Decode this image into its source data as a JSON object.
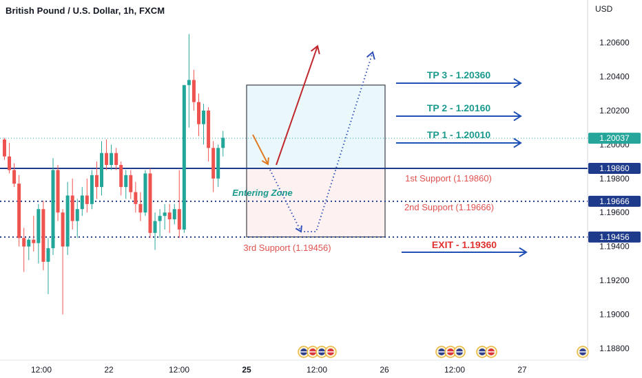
{
  "header": {
    "title": "British Pound / U.S. Dollar, 1h, FXCM",
    "price_unit": "USD"
  },
  "colors": {
    "bull": "#22a69a",
    "bear": "#ef5350",
    "support_line": "#1e3a8a",
    "target_arrow": "#1e4fb4",
    "tp_text": "#1a9a8c",
    "support_text": "#e0514f",
    "exit_text": "#e0302f",
    "zone_top_fill": "#eaf7fb",
    "zone_bottom_fill": "#fdf1f1",
    "up_arrow": "#c0282d",
    "entry_arrow": "#e07a22",
    "dotted_path": "#2f4fb8",
    "current_price_tag": "#26a69a",
    "level_tag": "#1e3a8a"
  },
  "chart_data": {
    "type": "candlestick",
    "symbol": "British Pound / U.S. Dollar",
    "timeframe": "1h",
    "source": "FXCM",
    "y_unit": "USD",
    "ylim": [
      1.1875,
      1.2075
    ],
    "y_ticks": [
      1.188,
      1.19,
      1.192,
      1.194,
      1.196,
      1.198,
      1.2,
      1.202,
      1.204,
      1.206
    ],
    "y_tick_labels": [
      "1.18800",
      "1.19000",
      "1.19200",
      "1.19400",
      "1.19600",
      "1.19800",
      "1.20000",
      "1.20200",
      "1.20400",
      "1.20600"
    ],
    "x_ticks": [
      "12:00",
      "22",
      "12:00",
      "25",
      "12:00",
      "26",
      "12:00",
      "27"
    ],
    "current_price": "1.20037",
    "levels": [
      {
        "label": "1.19860",
        "value": 1.1986,
        "style": "solid"
      },
      {
        "label": "1.19666",
        "value": 1.19666,
        "style": "dotted"
      },
      {
        "label": "1.19456",
        "value": 1.19456,
        "style": "dotted"
      }
    ],
    "zone": {
      "top": 1.2035,
      "mid": 1.1986,
      "bottom": 1.19456,
      "label": "Entering Zone"
    },
    "targets": [
      {
        "label": "TP 3 - 1.20360",
        "value": 1.2036
      },
      {
        "label": "TP 2 - 1.20160",
        "value": 1.2016
      },
      {
        "label": "TP 1 - 1.20010",
        "value": 1.2001
      }
    ],
    "supports": [
      {
        "label": "1st Support (1.19860)",
        "value": 1.1986
      },
      {
        "label": "2nd Support (1.19666)",
        "value": 1.19666
      },
      {
        "label": "3rd Support (1.19456)",
        "value": 1.19456
      }
    ],
    "exit": {
      "label": "EXIT - 1.19360",
      "value": 1.1936
    },
    "candles": [
      {
        "o": 1.2003,
        "h": 1.2004,
        "l": 1.1991,
        "c": 1.1993
      },
      {
        "o": 1.1993,
        "h": 1.2001,
        "l": 1.1983,
        "c": 1.1985
      },
      {
        "o": 1.1985,
        "h": 1.1989,
        "l": 1.1975,
        "c": 1.1977
      },
      {
        "o": 1.1977,
        "h": 1.1982,
        "l": 1.194,
        "c": 1.1945
      },
      {
        "o": 1.1945,
        "h": 1.1951,
        "l": 1.1925,
        "c": 1.194
      },
      {
        "o": 1.194,
        "h": 1.1945,
        "l": 1.1932,
        "c": 1.1944
      },
      {
        "o": 1.1944,
        "h": 1.1958,
        "l": 1.1937,
        "c": 1.1942
      },
      {
        "o": 1.1942,
        "h": 1.1965,
        "l": 1.193,
        "c": 1.1962
      },
      {
        "o": 1.1962,
        "h": 1.1967,
        "l": 1.1926,
        "c": 1.1931
      },
      {
        "o": 1.1931,
        "h": 1.1945,
        "l": 1.1912,
        "c": 1.1939
      },
      {
        "o": 1.1939,
        "h": 1.1992,
        "l": 1.1935,
        "c": 1.1985
      },
      {
        "o": 1.1985,
        "h": 1.1988,
        "l": 1.1955,
        "c": 1.196
      },
      {
        "o": 1.196,
        "h": 1.1962,
        "l": 1.19,
        "c": 1.194
      },
      {
        "o": 1.194,
        "h": 1.1978,
        "l": 1.1935,
        "c": 1.197
      },
      {
        "o": 1.197,
        "h": 1.198,
        "l": 1.195,
        "c": 1.1955
      },
      {
        "o": 1.1955,
        "h": 1.1968,
        "l": 1.1945,
        "c": 1.1962
      },
      {
        "o": 1.1962,
        "h": 1.1975,
        "l": 1.1958,
        "c": 1.197
      },
      {
        "o": 1.197,
        "h": 1.198,
        "l": 1.196,
        "c": 1.1965
      },
      {
        "o": 1.1965,
        "h": 1.1985,
        "l": 1.1962,
        "c": 1.1982
      },
      {
        "o": 1.1982,
        "h": 1.199,
        "l": 1.1968,
        "c": 1.1975
      },
      {
        "o": 1.1975,
        "h": 1.2002,
        "l": 1.197,
        "c": 1.1995
      },
      {
        "o": 1.1995,
        "h": 1.2003,
        "l": 1.1985,
        "c": 1.1988
      },
      {
        "o": 1.1988,
        "h": 1.2,
        "l": 1.1985,
        "c": 1.1995
      },
      {
        "o": 1.1995,
        "h": 1.1998,
        "l": 1.1985,
        "c": 1.1988
      },
      {
        "o": 1.1988,
        "h": 1.199,
        "l": 1.197,
        "c": 1.1975
      },
      {
        "o": 1.1975,
        "h": 1.1985,
        "l": 1.1968,
        "c": 1.1982
      },
      {
        "o": 1.1982,
        "h": 1.1985,
        "l": 1.1968,
        "c": 1.1972
      },
      {
        "o": 1.1972,
        "h": 1.1978,
        "l": 1.196,
        "c": 1.1965
      },
      {
        "o": 1.1965,
        "h": 1.1972,
        "l": 1.1955,
        "c": 1.196
      },
      {
        "o": 1.196,
        "h": 1.1985,
        "l": 1.1958,
        "c": 1.1983
      },
      {
        "o": 1.1983,
        "h": 1.1986,
        "l": 1.1945,
        "c": 1.1948
      },
      {
        "o": 1.1948,
        "h": 1.196,
        "l": 1.1938,
        "c": 1.1955
      },
      {
        "o": 1.1955,
        "h": 1.1962,
        "l": 1.1945,
        "c": 1.1958
      },
      {
        "o": 1.1958,
        "h": 1.1965,
        "l": 1.195,
        "c": 1.196
      },
      {
        "o": 1.196,
        "h": 1.1965,
        "l": 1.1948,
        "c": 1.1956
      },
      {
        "o": 1.1956,
        "h": 1.1965,
        "l": 1.1953,
        "c": 1.1962
      },
      {
        "o": 1.1962,
        "h": 1.1985,
        "l": 1.1945,
        "c": 1.195
      },
      {
        "o": 1.195,
        "h": 1.2035,
        "l": 1.1948,
        "c": 1.2035
      },
      {
        "o": 1.2035,
        "h": 1.2065,
        "l": 1.201,
        "c": 1.2038
      },
      {
        "o": 1.2038,
        "h": 1.2044,
        "l": 1.202,
        "c": 1.2025
      },
      {
        "o": 1.2025,
        "h": 1.203,
        "l": 1.2005,
        "c": 1.2012
      },
      {
        "o": 1.2012,
        "h": 1.2024,
        "l": 1.2,
        "c": 1.202
      },
      {
        "o": 1.202,
        "h": 1.2022,
        "l": 1.199,
        "c": 1.1998
      },
      {
        "o": 1.1998,
        "h": 1.2002,
        "l": 1.1972,
        "c": 1.198
      },
      {
        "o": 1.198,
        "h": 1.2,
        "l": 1.1975,
        "c": 1.1998
      },
      {
        "o": 1.1998,
        "h": 1.2008,
        "l": 1.1993,
        "c": 1.2004
      }
    ],
    "events": {
      "group1_count": 4,
      "group2_count": 3,
      "group3_count": 2,
      "group4_count": 1
    }
  }
}
